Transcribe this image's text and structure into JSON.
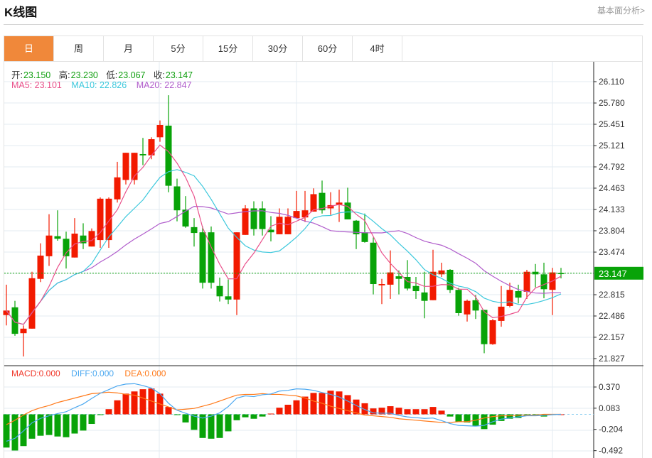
{
  "header": {
    "title": "K线图",
    "link": "基本面分析>"
  },
  "tabs": [
    {
      "label": "日",
      "active": true
    },
    {
      "label": "周"
    },
    {
      "label": "月"
    },
    {
      "label": "5分"
    },
    {
      "label": "15分"
    },
    {
      "label": "30分"
    },
    {
      "label": "60分"
    },
    {
      "label": "4时"
    }
  ],
  "info": {
    "open_label": "开:",
    "open": "23.150",
    "high_label": "高:",
    "high": "23.230",
    "low_label": "低:",
    "low": "23.067",
    "close_label": "收:",
    "close": "23.147",
    "ma5": "MA5: 23.101",
    "ma10": "MA10: 22.826",
    "ma20": "MA20: 22.847"
  },
  "macd_info": {
    "macd": "MACD:0.000",
    "diff": "DIFF:0.000",
    "dea": "DEA:0.000"
  },
  "colors": {
    "up": "#f21a00",
    "down": "#08a308",
    "ma5": "#e9508a",
    "ma10": "#3cc8dc",
    "ma20": "#b05ccb",
    "diff": "#4ba8f0",
    "dea": "#ff7a1a",
    "current": "#08a308",
    "active_tab": "#f0883a"
  },
  "chart_data": [
    {
      "type": "candlestick",
      "current_price": "23.147",
      "yticks": [
        "26.110",
        "25.780",
        "25.451",
        "25.121",
        "24.792",
        "24.463",
        "24.133",
        "23.804",
        "23.474",
        "22.815",
        "22.486",
        "22.157",
        "21.827"
      ],
      "ylim": [
        21.827,
        26.11
      ],
      "grid": true,
      "candles_ohlc": [
        [
          22.5,
          22.97,
          22.34,
          22.57
        ],
        [
          22.62,
          22.72,
          22.18,
          22.21
        ],
        [
          22.22,
          22.34,
          21.86,
          22.29
        ],
        [
          22.29,
          23.17,
          22.29,
          23.07
        ],
        [
          23.06,
          23.61,
          23.01,
          23.42
        ],
        [
          23.41,
          24.06,
          23.26,
          23.73
        ],
        [
          23.72,
          24.12,
          23.65,
          23.68
        ],
        [
          23.68,
          23.79,
          23.22,
          23.41
        ],
        [
          23.39,
          24.0,
          23.39,
          23.76
        ],
        [
          23.73,
          23.92,
          23.52,
          23.61
        ],
        [
          23.56,
          23.84,
          23.56,
          23.8
        ],
        [
          23.66,
          24.32,
          23.54,
          24.3
        ],
        [
          23.66,
          24.32,
          23.54,
          24.3
        ],
        [
          24.29,
          24.87,
          24.24,
          24.63
        ],
        [
          24.59,
          25.01,
          24.52,
          25.01
        ],
        [
          24.59,
          25.01,
          24.52,
          25.01
        ],
        [
          24.99,
          25.24,
          24.82,
          24.97
        ],
        [
          24.97,
          25.25,
          24.91,
          25.22
        ],
        [
          25.25,
          25.51,
          25.18,
          25.44
        ],
        [
          25.43,
          25.9,
          24.4,
          24.5
        ],
        [
          24.49,
          24.61,
          23.95,
          24.12
        ],
        [
          24.13,
          24.34,
          23.85,
          23.87
        ],
        [
          23.86,
          24.0,
          23.56,
          23.77
        ],
        [
          23.78,
          23.87,
          22.91,
          23.0
        ],
        [
          23.78,
          23.87,
          22.91,
          23.0
        ],
        [
          22.95,
          23.08,
          22.71,
          22.79
        ],
        [
          22.79,
          23.05,
          22.67,
          22.74
        ],
        [
          22.74,
          23.78,
          22.5,
          23.78
        ],
        [
          23.74,
          24.2,
          23.74,
          24.15
        ],
        [
          24.15,
          24.26,
          23.73,
          23.83
        ],
        [
          24.15,
          24.26,
          23.73,
          23.83
        ],
        [
          23.82,
          24.03,
          23.64,
          23.78
        ],
        [
          23.75,
          24.15,
          23.75,
          24.02
        ],
        [
          23.75,
          24.15,
          23.75,
          24.02
        ],
        [
          24.0,
          24.42,
          24.0,
          24.11
        ],
        [
          24.01,
          24.42,
          23.94,
          24.12
        ],
        [
          24.1,
          24.46,
          24.1,
          24.37
        ],
        [
          24.39,
          24.58,
          24.07,
          24.12
        ],
        [
          24.15,
          24.4,
          24.05,
          24.2
        ],
        [
          24.21,
          24.44,
          23.94,
          24.24
        ],
        [
          24.24,
          24.47,
          23.98,
          23.98
        ],
        [
          23.96,
          23.97,
          23.52,
          23.75
        ],
        [
          23.78,
          24.07,
          23.62,
          23.63
        ],
        [
          23.62,
          23.7,
          22.82,
          22.98
        ],
        [
          22.96,
          23.06,
          22.67,
          22.98
        ],
        [
          22.97,
          23.5,
          22.75,
          23.16
        ],
        [
          23.1,
          23.19,
          22.82,
          23.06
        ],
        [
          23.09,
          23.35,
          22.88,
          22.91
        ],
        [
          22.95,
          23.09,
          22.75,
          22.87
        ],
        [
          22.85,
          23.17,
          22.45,
          22.72
        ],
        [
          22.73,
          23.51,
          22.73,
          23.17
        ],
        [
          23.13,
          23.31,
          23.09,
          23.19
        ],
        [
          23.2,
          23.21,
          22.84,
          22.89
        ],
        [
          22.89,
          22.92,
          22.49,
          22.53
        ],
        [
          22.51,
          22.74,
          22.4,
          22.72
        ],
        [
          22.73,
          22.81,
          22.44,
          22.57
        ],
        [
          22.58,
          22.58,
          21.91,
          22.05
        ],
        [
          22.05,
          22.44,
          22.04,
          22.42
        ],
        [
          22.41,
          22.95,
          22.32,
          22.63
        ],
        [
          22.64,
          23.0,
          22.62,
          22.89
        ],
        [
          22.87,
          22.97,
          22.68,
          22.77
        ],
        [
          22.86,
          23.2,
          22.75,
          23.17
        ],
        [
          23.17,
          23.29,
          22.93,
          23.13
        ],
        [
          23.13,
          23.31,
          22.76,
          22.9
        ],
        [
          22.89,
          23.23,
          22.5,
          23.16
        ],
        [
          23.15,
          23.23,
          23.067,
          23.147
        ]
      ],
      "moving_averages": [
        "MA5",
        "MA10",
        "MA20"
      ]
    },
    {
      "type": "bar+line",
      "yticks": [
        "0.370",
        "0.083",
        "-0.204",
        "-0.492"
      ],
      "macd": [
        -0.45,
        -0.49,
        -0.43,
        -0.33,
        -0.29,
        -0.28,
        -0.3,
        -0.31,
        -0.26,
        -0.22,
        -0.13,
        -0.01,
        0.07,
        0.19,
        0.28,
        0.31,
        0.34,
        0.35,
        0.28,
        0.1,
        -0.01,
        -0.11,
        -0.21,
        -0.32,
        -0.33,
        -0.32,
        -0.23,
        -0.08,
        -0.04,
        -0.06,
        -0.03,
        0.01,
        0.09,
        0.13,
        0.19,
        0.24,
        0.29,
        0.29,
        0.32,
        0.31,
        0.26,
        0.2,
        0.15,
        0.08,
        0.09,
        0.11,
        0.09,
        0.07,
        0.07,
        0.07,
        0.1,
        0.05,
        -0.03,
        -0.1,
        -0.11,
        -0.16,
        -0.2,
        -0.14,
        -0.09,
        -0.06,
        -0.05,
        -0.02,
        -0.02,
        -0.03,
        -0.01,
        0
      ],
      "dea": [
        -0.14,
        -0.08,
        -0.01,
        0.05,
        0.09,
        0.12,
        0.16,
        0.19,
        0.22,
        0.25,
        0.28,
        0.29,
        0.3,
        0.29,
        0.27,
        0.26,
        0.22,
        0.18,
        0.14,
        0.1,
        0.06,
        0.07,
        0.08,
        0.11,
        0.14,
        0.18,
        0.22,
        0.26,
        0.27,
        0.27,
        0.28,
        0.27,
        0.27,
        0.26,
        0.25,
        0.22,
        0.18,
        0.15,
        0.11,
        0.08,
        0.05,
        0.02,
        -0.01,
        -0.02,
        -0.03,
        -0.04,
        -0.06,
        -0.07,
        -0.08,
        -0.09,
        -0.1,
        -0.11,
        -0.11,
        -0.1,
        -0.1,
        -0.08,
        -0.05,
        -0.03,
        -0.02,
        -0.02,
        -0.01,
        -0.01,
        -0.01,
        0,
        0,
        0
      ],
      "diff": [
        -0.365,
        -0.325,
        -0.225,
        -0.115,
        -0.055,
        -0.02,
        0.01,
        0.035,
        0.09,
        0.14,
        0.215,
        0.285,
        0.335,
        0.385,
        0.41,
        0.415,
        0.39,
        0.355,
        0.28,
        0.15,
        0.055,
        0.015,
        -0.025,
        -0.05,
        -0.025,
        0.02,
        0.105,
        0.22,
        0.25,
        0.24,
        0.265,
        0.275,
        0.315,
        0.325,
        0.345,
        0.34,
        0.325,
        0.295,
        0.27,
        0.235,
        0.18,
        0.12,
        0.065,
        0.02,
        0.015,
        0.015,
        -0.015,
        -0.035,
        -0.045,
        -0.055,
        -0.05,
        -0.085,
        -0.125,
        -0.15,
        -0.155,
        -0.16,
        -0.15,
        -0.1,
        -0.065,
        -0.05,
        -0.035,
        -0.02,
        -0.02,
        -0.015,
        -0.005,
        0
      ]
    }
  ]
}
